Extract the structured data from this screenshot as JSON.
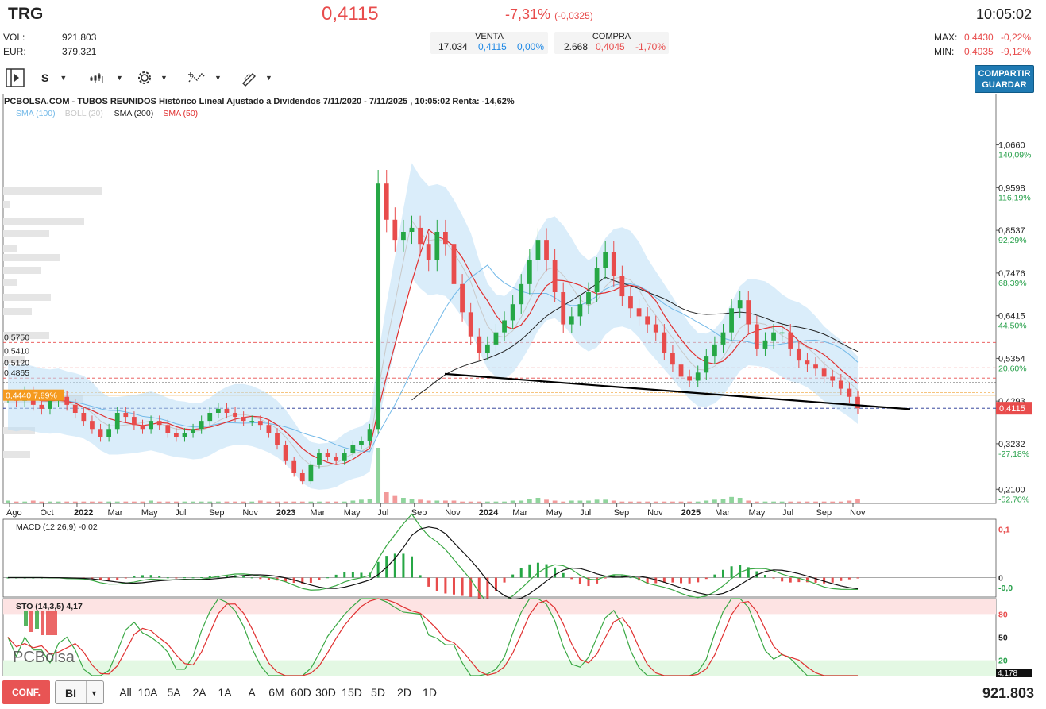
{
  "header": {
    "ticker": "TRG",
    "price": "0,4115",
    "change_pct": "-7,31%",
    "change_abs": "(-0,0325)",
    "time": "10:05:02",
    "vol_label": "VOL:",
    "vol_value": "921.803",
    "eur_label": "EUR:",
    "eur_value": "379.321",
    "venta": {
      "label": "VENTA",
      "qty": "17.034",
      "price": "0,4115",
      "pct": "0,00%"
    },
    "compra": {
      "label": "COMPRA",
      "qty": "2.668",
      "price": "0,4045",
      "pct": "-1,70%"
    },
    "max_label": "MAX:",
    "max_value": "0,4430",
    "max_pct": "-0,22%",
    "min_label": "MIN:",
    "min_value": "0,4035",
    "min_pct": "-9,12%"
  },
  "toolbar": {
    "mode_label": "S",
    "share_label_1": "COMPARTIR",
    "share_label_2": "GUARDAR"
  },
  "footer": {
    "config_label": "CONF.",
    "select_value": "BI",
    "ranges": [
      "All",
      "10A",
      "5A",
      "2A",
      "1A",
      "A",
      "6M",
      "60D",
      "30D",
      "15D",
      "5D",
      "2D",
      "1D"
    ],
    "total_volume": "921.803"
  },
  "colors": {
    "up": "#26a745",
    "down": "#e84c4c",
    "boll": "#bcdff6",
    "sma100": "#73b9e8",
    "sma200": "#222222",
    "sma50": "#e03030"
  },
  "chart_data": [
    {
      "type": "candlestick",
      "title": "PCBOLSA.COM - TUBOS REUNIDOS Histórico Lineal Ajustado a Dividendos 7/11/2020 - 7/11/2025 , 10:05:02 Renta: -14,62%",
      "legend": [
        {
          "name": "SMA (100)",
          "color": "#73b9e8"
        },
        {
          "name": "BOLL (20)",
          "color": "#c7c7c7"
        },
        {
          "name": "SMA (200)",
          "color": "#222222"
        },
        {
          "name": "SMA (50)",
          "color": "#e03030"
        }
      ],
      "x_labels": [
        "Ago",
        "Oct",
        "2022",
        "Mar",
        "May",
        "Jul",
        "Sep",
        "Nov",
        "2023",
        "Mar",
        "May",
        "Jul",
        "Sep",
        "Nov",
        "2024",
        "Mar",
        "May",
        "Jul",
        "Sep",
        "Nov",
        "2025",
        "Mar",
        "May",
        "Jul",
        "Sep",
        "Nov"
      ],
      "x_bold": [
        "2022",
        "2023",
        "2024",
        "2025"
      ],
      "y_ticks": [
        {
          "value": 1.066,
          "label": "1,0660",
          "pct": "140,09%"
        },
        {
          "value": 0.9598,
          "label": "0,9598",
          "pct": "116,19%"
        },
        {
          "value": 0.8537,
          "label": "0,8537",
          "pct": "92,29%"
        },
        {
          "value": 0.7476,
          "label": "0,7476",
          "pct": "68,39%"
        },
        {
          "value": 0.6415,
          "label": "0,6415",
          "pct": "44,50%"
        },
        {
          "value": 0.5354,
          "label": "0,5354",
          "pct": "20,60%"
        },
        {
          "value": 0.4293,
          "label": "0,4293",
          "pct": ""
        },
        {
          "value": 0.3232,
          "label": "0,3232",
          "pct": "-27,18%"
        },
        {
          "value": 0.21,
          "label": "0,2100",
          "pct": "-52,70%"
        }
      ],
      "y_range": [
        0.175,
        1.15
      ],
      "levels": [
        {
          "value": 0.575,
          "label": "0,5750"
        },
        {
          "value": 0.541,
          "label": "0,5410"
        },
        {
          "value": 0.512,
          "label": "0,5120"
        },
        {
          "value": 0.4865,
          "label": "0,4865"
        }
      ],
      "ref_line": {
        "value": 0.444,
        "label": "0,4440",
        "pct": "7,89%"
      },
      "last_price": {
        "value": 0.4115,
        "label": "0,4115"
      },
      "close_series": [
        0.44,
        0.43,
        0.45,
        0.42,
        0.41,
        0.43,
        0.44,
        0.42,
        0.4,
        0.38,
        0.36,
        0.34,
        0.36,
        0.4,
        0.39,
        0.37,
        0.36,
        0.38,
        0.37,
        0.35,
        0.34,
        0.35,
        0.36,
        0.38,
        0.4,
        0.41,
        0.4,
        0.39,
        0.38,
        0.38,
        0.37,
        0.35,
        0.32,
        0.28,
        0.25,
        0.23,
        0.27,
        0.3,
        0.29,
        0.28,
        0.3,
        0.32,
        0.33,
        0.36,
        0.97,
        0.88,
        0.83,
        0.85,
        0.86,
        0.82,
        0.78,
        0.85,
        0.82,
        0.72,
        0.65,
        0.59,
        0.55,
        0.57,
        0.6,
        0.63,
        0.67,
        0.72,
        0.78,
        0.83,
        0.78,
        0.7,
        0.62,
        0.64,
        0.67,
        0.7,
        0.76,
        0.8,
        0.74,
        0.69,
        0.66,
        0.64,
        0.62,
        0.6,
        0.55,
        0.52,
        0.49,
        0.48,
        0.5,
        0.54,
        0.57,
        0.6,
        0.66,
        0.68,
        0.62,
        0.56,
        0.58,
        0.6,
        0.6,
        0.56,
        0.53,
        0.52,
        0.51,
        0.49,
        0.48,
        0.46,
        0.44,
        0.4115
      ],
      "volume_series": [
        3,
        2,
        2,
        3,
        2,
        2,
        2,
        2,
        2,
        2,
        2,
        2,
        2,
        2,
        2,
        2,
        2,
        3,
        2,
        2,
        2,
        2,
        2,
        2,
        2,
        2,
        2,
        2,
        2,
        2,
        3,
        2,
        2,
        2,
        2,
        2,
        2,
        2,
        2,
        2,
        2,
        3,
        4,
        5,
        60,
        12,
        8,
        6,
        5,
        4,
        3,
        3,
        3,
        3,
        2,
        2,
        2,
        2,
        2,
        2,
        3,
        3,
        5,
        6,
        4,
        3,
        2,
        3,
        3,
        3,
        4,
        4,
        3,
        2,
        2,
        2,
        2,
        2,
        2,
        2,
        2,
        2,
        2,
        3,
        4,
        5,
        7,
        6,
        3,
        2,
        2,
        2,
        2,
        2,
        2,
        2,
        2,
        2,
        2,
        2,
        3,
        5
      ]
    },
    {
      "type": "line",
      "title": "MACD (12,26,9)",
      "value_label": "-0,02",
      "y_ticks": [
        {
          "value": 0.1,
          "label": "0,1"
        },
        {
          "value": 0,
          "label": "0"
        },
        {
          "value": -0.02,
          "label": "-0,0"
        }
      ],
      "y_range": [
        -0.04,
        0.12
      ]
    },
    {
      "type": "line",
      "title": "STO (14,3,5)",
      "value_label": "4,17",
      "last_label": "4,178",
      "y_ticks": [
        {
          "value": 80,
          "label": "80"
        },
        {
          "value": 50,
          "label": "50"
        },
        {
          "value": 20,
          "label": "20"
        }
      ],
      "y_range": [
        0,
        100
      ]
    }
  ],
  "watermark": "PCBolsa"
}
